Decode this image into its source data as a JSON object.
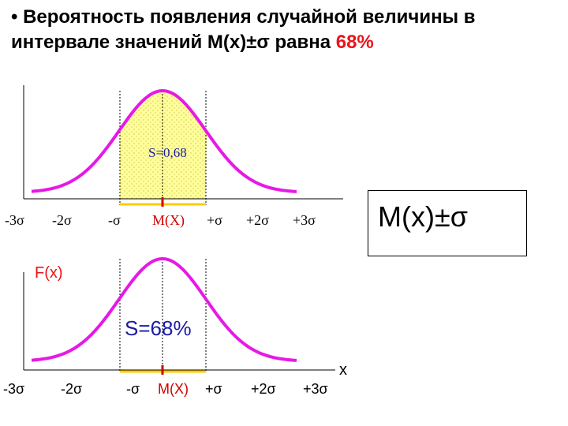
{
  "title": {
    "line1": "• Вероятность появления случайной величины в",
    "line2_prefix": "интервале значений M(x)±σ равна ",
    "line2_highlight": "68%"
  },
  "box_label": "M(x)±σ",
  "colors": {
    "curve": "#e619e6",
    "fill": "#ffff99",
    "interval": "#ffcc00",
    "mean_mark": "#d00000",
    "mean_label": "#d00000",
    "area_label_top": "#1a1aa6",
    "area_label_bottom": "#1a1aa6",
    "highlight": "#e8141b"
  },
  "top_graph": {
    "area_label": "S=0,68",
    "ticks": [
      "-3σ",
      "-2σ",
      "-σ",
      "M(X)",
      "+σ",
      "+2σ",
      "+3σ"
    ]
  },
  "bottom_graph": {
    "y_label": "F(x)",
    "x_label": "x",
    "area_label": "S=68%",
    "ticks": [
      "-3σ",
      "-2σ",
      "-σ",
      "M(X)",
      "+σ",
      "+2σ",
      "+3σ"
    ]
  }
}
